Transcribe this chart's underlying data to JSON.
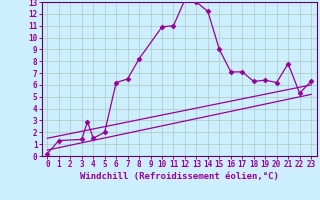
{
  "title": "",
  "xlabel": "Windchill (Refroidissement éolien,°C)",
  "background_color": "#cceeff",
  "grid_color": "#aaccbb",
  "line_color": "#990099",
  "spine_color": "#660066",
  "xlim": [
    -0.5,
    23.5
  ],
  "ylim": [
    0,
    13
  ],
  "xticks": [
    0,
    1,
    2,
    3,
    4,
    5,
    6,
    7,
    8,
    9,
    10,
    11,
    12,
    13,
    14,
    15,
    16,
    17,
    18,
    19,
    20,
    21,
    22,
    23
  ],
  "yticks": [
    0,
    1,
    2,
    3,
    4,
    5,
    6,
    7,
    8,
    9,
    10,
    11,
    12,
    13
  ],
  "curve1_x": [
    0,
    1,
    3,
    3.5,
    4,
    5,
    6,
    7,
    8,
    10,
    11,
    12,
    13,
    14,
    15,
    16,
    17,
    18,
    19,
    20,
    21,
    22,
    23
  ],
  "curve1_y": [
    0.2,
    1.3,
    1.4,
    2.9,
    1.5,
    2.0,
    6.2,
    6.5,
    8.2,
    10.9,
    11.0,
    13.2,
    13.0,
    12.2,
    9.0,
    7.1,
    7.1,
    6.3,
    6.4,
    6.2,
    7.8,
    5.3,
    6.3
  ],
  "line1_x": [
    0,
    23
  ],
  "line1_y": [
    0.5,
    5.2
  ],
  "line2_x": [
    0,
    23
  ],
  "line2_y": [
    1.5,
    6.0
  ],
  "marker": "D",
  "markersize": 2.5,
  "linewidth": 0.9,
  "tick_fontsize": 5.5,
  "label_fontsize": 6.5
}
